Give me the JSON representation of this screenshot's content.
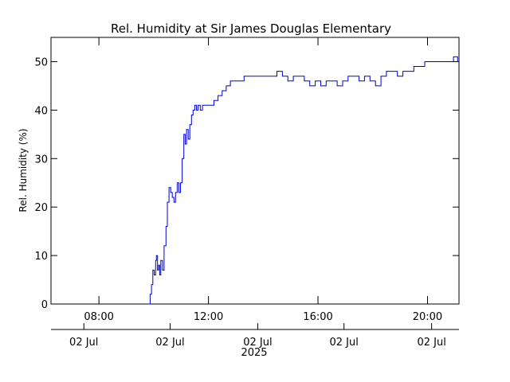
{
  "chart_data": {
    "type": "line",
    "title": "Rel. Humidity at Sir James Douglas Elementary",
    "ylabel": "Rel. Humidity (%)",
    "ylim": [
      0,
      55
    ],
    "yticks": [
      0,
      10,
      20,
      30,
      40,
      50
    ],
    "xlim_hours": [
      6.25,
      21.15
    ],
    "time_ticks": [
      {
        "hour": 8,
        "label": "08:00"
      },
      {
        "hour": 12,
        "label": "12:00"
      },
      {
        "hour": 16,
        "label": "16:00"
      },
      {
        "hour": 20,
        "label": "20:00"
      }
    ],
    "date_ticks": [
      {
        "hour": 7.45,
        "label": "02 Jul"
      },
      {
        "hour": 10.6,
        "label": "02 Jul"
      },
      {
        "hour": 13.8,
        "label": "02 Jul"
      },
      {
        "hour": 16.95,
        "label": "02 Jul"
      },
      {
        "hour": 20.15,
        "label": "02 Jul"
      }
    ],
    "year_label": "2025",
    "grid": false,
    "series": [
      {
        "color": "#0000cc",
        "x": [
          9.8,
          9.87,
          9.92,
          9.97,
          10.02,
          10.07,
          10.1,
          10.14,
          10.18,
          10.22,
          10.26,
          10.32,
          10.38,
          10.45,
          10.5,
          10.56,
          10.62,
          10.68,
          10.74,
          10.8,
          10.86,
          10.92,
          10.98,
          11.04,
          11.1,
          11.15,
          11.2,
          11.26,
          11.32,
          11.38,
          11.44,
          11.5,
          11.56,
          11.62,
          11.7,
          11.78,
          11.86,
          11.95,
          12.05,
          12.2,
          12.35,
          12.5,
          12.65,
          12.8,
          12.95,
          13.1,
          13.3,
          13.5,
          13.7,
          13.9,
          14.1,
          14.3,
          14.5,
          14.7,
          14.9,
          15.1,
          15.3,
          15.5,
          15.7,
          15.9,
          16.1,
          16.3,
          16.5,
          16.7,
          16.9,
          17.1,
          17.3,
          17.5,
          17.7,
          17.9,
          18.1,
          18.3,
          18.5,
          18.7,
          18.9,
          19.1,
          19.3,
          19.5,
          19.7,
          19.9,
          20.05,
          20.2,
          20.35,
          20.5,
          20.65,
          20.8,
          20.95,
          21.1
        ],
        "y": [
          0,
          2,
          4,
          7,
          6,
          9,
          10,
          7,
          8,
          6,
          9,
          7,
          12,
          16,
          21,
          24,
          23,
          22,
          21,
          23,
          25,
          23,
          25,
          30,
          35,
          33,
          36,
          34,
          37,
          39,
          40,
          41,
          40,
          41,
          40,
          41,
          41,
          41,
          41,
          42,
          43,
          44,
          45,
          46,
          46,
          46,
          47,
          47,
          47,
          47,
          47,
          47,
          48,
          47,
          46,
          47,
          47,
          46,
          45,
          46,
          45,
          46,
          46,
          45,
          46,
          47,
          47,
          46,
          47,
          46,
          45,
          47,
          48,
          48,
          47,
          48,
          48,
          49,
          49,
          50,
          50,
          50,
          50,
          50,
          50,
          50,
          51,
          50
        ]
      }
    ]
  }
}
